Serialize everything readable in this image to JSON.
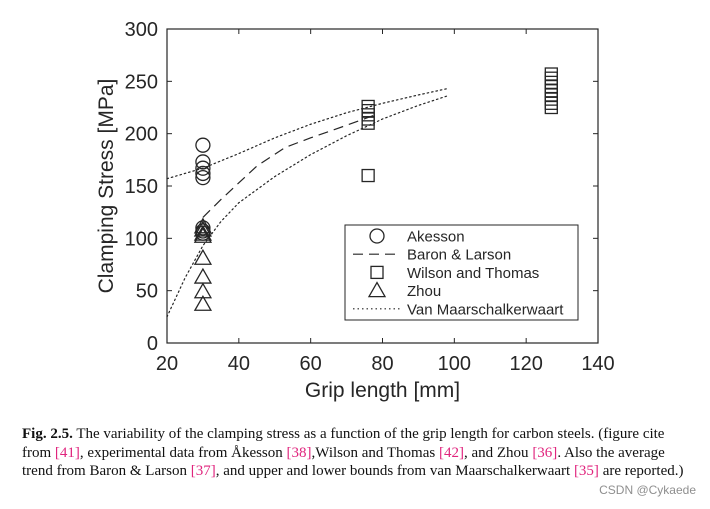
{
  "chart_data": {
    "type": "scatter",
    "title": "",
    "xlabel": "Grip length [mm]",
    "ylabel": "Clamping Stress [MPa]",
    "xlim": [
      20,
      140
    ],
    "ylim": [
      0,
      300
    ],
    "xticks": [
      20,
      40,
      60,
      80,
      100,
      120,
      140
    ],
    "yticks": [
      0,
      50,
      100,
      150,
      200,
      250,
      300
    ],
    "legend_position": "bottom-right",
    "series": [
      {
        "name": "Akesson",
        "marker": "circle",
        "kind": "points",
        "points": [
          [
            30,
            189
          ],
          [
            30,
            173
          ],
          [
            30,
            167
          ],
          [
            30,
            162
          ],
          [
            30,
            158
          ],
          [
            30,
            110
          ],
          [
            30,
            107
          ],
          [
            30,
            105
          ]
        ]
      },
      {
        "name": "Baron & Larson",
        "marker": "none",
        "kind": "line",
        "dash": "dashed",
        "points": [
          [
            30,
            120
          ],
          [
            35,
            137
          ],
          [
            40,
            153
          ],
          [
            45,
            169
          ],
          [
            53,
            187
          ],
          [
            60,
            196
          ],
          [
            70,
            208
          ],
          [
            78,
            218
          ]
        ]
      },
      {
        "name": "Wilson and Thomas",
        "marker": "square",
        "kind": "points",
        "points": [
          [
            76,
            226
          ],
          [
            76,
            222
          ],
          [
            76,
            218
          ],
          [
            76,
            214
          ],
          [
            76,
            210
          ],
          [
            76,
            160
          ],
          [
            127,
            257
          ],
          [
            127,
            253
          ],
          [
            127,
            249
          ],
          [
            127,
            245
          ],
          [
            127,
            241
          ],
          [
            127,
            237
          ],
          [
            127,
            233
          ],
          [
            127,
            229
          ],
          [
            127,
            225
          ]
        ]
      },
      {
        "name": "Zhou",
        "marker": "triangle",
        "kind": "points",
        "points": [
          [
            30,
            111
          ],
          [
            30,
            108
          ],
          [
            30,
            104
          ],
          [
            30,
            102
          ],
          [
            30,
            81
          ],
          [
            30,
            63
          ],
          [
            30,
            49
          ],
          [
            30,
            37
          ]
        ]
      },
      {
        "name": "Van Maarschalkerwaart",
        "marker": "none",
        "kind": "line",
        "dash": "dotted",
        "segments": [
          [
            [
              20,
              157
            ],
            [
              30,
              167
            ],
            [
              40,
              181
            ],
            [
              50,
              196
            ],
            [
              60,
              209
            ],
            [
              70,
              220
            ],
            [
              80,
              229
            ],
            [
              90,
              237
            ],
            [
              98,
              243
            ]
          ],
          [
            [
              20,
              25
            ],
            [
              25,
              62
            ],
            [
              30,
              93
            ],
            [
              35,
              116
            ],
            [
              40,
              134
            ],
            [
              50,
              159
            ],
            [
              60,
              180
            ],
            [
              70,
              198
            ],
            [
              80,
              214
            ],
            [
              90,
              227
            ],
            [
              98,
              236
            ]
          ]
        ]
      }
    ]
  },
  "caption": {
    "label": "Fig. 2.5.",
    "segments": [
      {
        "t": " The variability of the clamping stress as a function of the grip length for carbon steels. (figure cite from "
      },
      {
        "t": "[41]",
        "cite": true
      },
      {
        "t": ", experimental data from Åkesson "
      },
      {
        "t": "[38]",
        "cite": true
      },
      {
        "t": ",Wilson and Thomas "
      },
      {
        "t": "[42]",
        "cite": true
      },
      {
        "t": ", and Zhou "
      },
      {
        "t": "[36]",
        "cite": true
      },
      {
        "t": ".  Also the average trend from Baron & Larson "
      },
      {
        "t": "[37]",
        "cite": true
      },
      {
        "t": ", and upper and lower bounds from van Maarschalkerwaart "
      },
      {
        "t": "[35]",
        "cite": true
      },
      {
        "t": " are reported.)"
      }
    ]
  },
  "watermark": "CSDN @Cykaede",
  "colors": {
    "ink": "#262626",
    "cite": "#e0247d",
    "watermark": "#8f8f8f"
  }
}
